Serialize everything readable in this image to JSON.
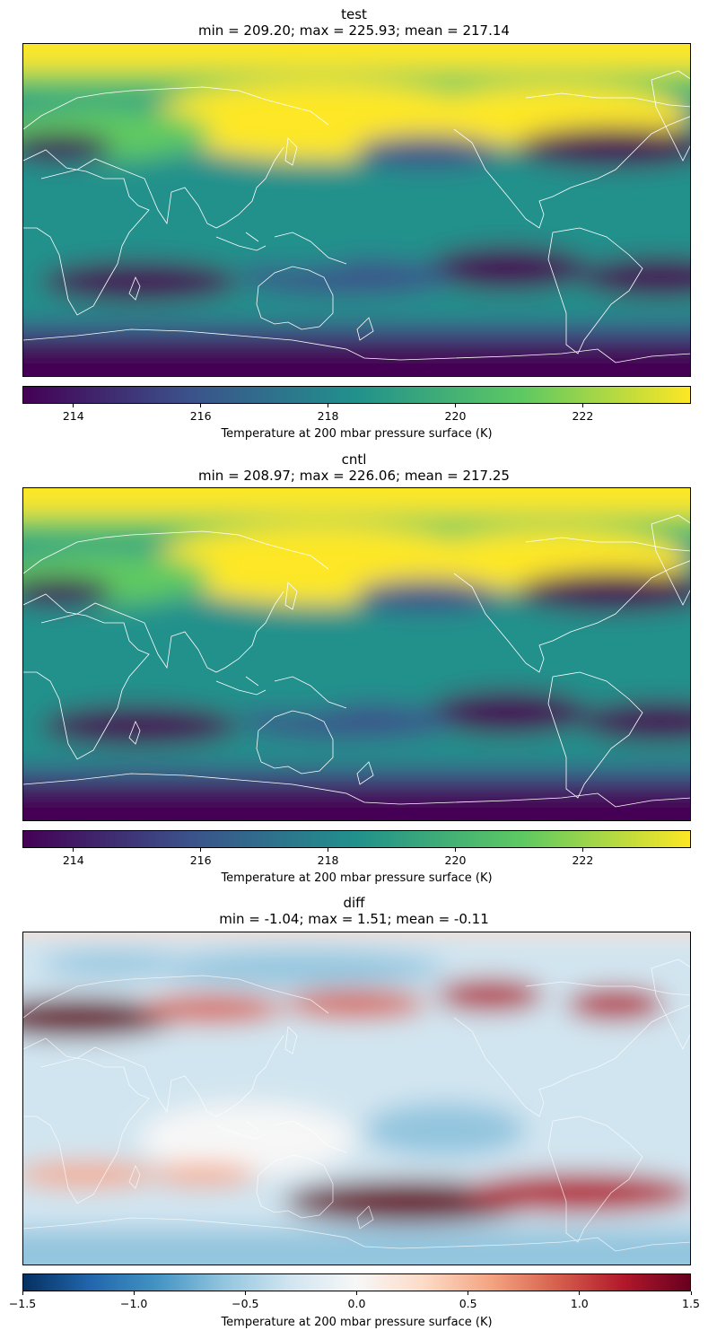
{
  "panels": [
    {
      "name": "test",
      "stats": "min = 209.20; max = 225.93; mean = 217.14",
      "colormap": "viridis",
      "colorbar": {
        "min": 213.2,
        "max": 223.7,
        "ticks": [
          "214",
          "216",
          "218",
          "220",
          "222"
        ],
        "tick_values": [
          214,
          216,
          218,
          220,
          222
        ],
        "label": "Temperature at 200 mbar pressure surface (K)"
      }
    },
    {
      "name": "cntl",
      "stats": "min = 208.97; max = 226.06; mean = 217.25",
      "colormap": "viridis",
      "colorbar": {
        "min": 213.2,
        "max": 223.7,
        "ticks": [
          "214",
          "216",
          "218",
          "220",
          "222"
        ],
        "tick_values": [
          214,
          216,
          218,
          220,
          222
        ],
        "label": "Temperature at 200 mbar pressure surface (K)"
      }
    },
    {
      "name": "diff",
      "stats": "min = -1.04; max = 1.51; mean = -0.11",
      "colormap": "RdBu_r",
      "colorbar": {
        "min": -1.5,
        "max": 1.5,
        "ticks": [
          "−1.5",
          "−1.0",
          "−0.5",
          "0.0",
          "0.5",
          "1.0",
          "1.5"
        ],
        "tick_values": [
          -1.5,
          -1.0,
          -0.5,
          0.0,
          0.5,
          1.0,
          1.5
        ],
        "label": "Temperature at 200 mbar pressure surface (K)"
      }
    }
  ],
  "colors": {
    "viridis": [
      "#440154",
      "#3b528b",
      "#21918c",
      "#5ec962",
      "#fde725"
    ],
    "rdbu": [
      "#053061",
      "#2166ac",
      "#4393c3",
      "#92c5de",
      "#d1e5f0",
      "#f7f7f7",
      "#fddbc7",
      "#f4a582",
      "#d6604d",
      "#b2182b",
      "#67001f"
    ],
    "coast": "#ffffff"
  }
}
